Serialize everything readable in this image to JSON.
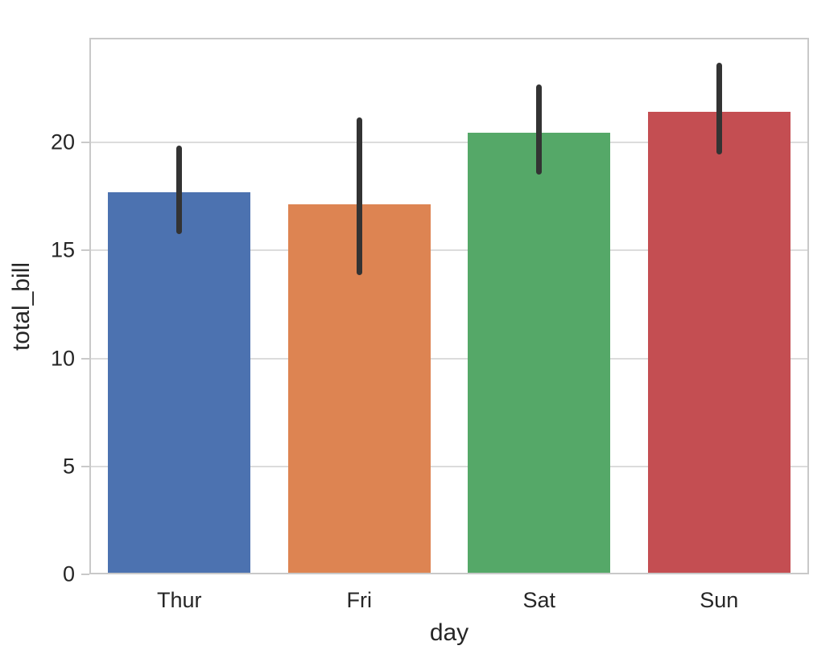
{
  "chart_data": {
    "type": "bar",
    "title": "",
    "xlabel": "day",
    "ylabel": "total_bill",
    "categories": [
      "Thur",
      "Fri",
      "Sat",
      "Sun"
    ],
    "values": [
      17.68,
      17.15,
      20.44,
      21.41
    ],
    "error_bars": {
      "low": [
        15.75,
        13.85,
        18.5,
        19.45
      ],
      "high": [
        19.85,
        21.15,
        22.7,
        23.7
      ]
    },
    "ylim": [
      0,
      24.85
    ],
    "yticks": [
      0,
      5,
      10,
      15,
      20
    ],
    "grid": "horizontal",
    "legend": "none",
    "bar_colors": [
      "#4C72B0",
      "#DD8452",
      "#55A868",
      "#C44E52"
    ],
    "error_bar_color": "#333333",
    "grid_color": "#dcdcdc",
    "spine_color": "#c9c9c9",
    "text_color": "#262626",
    "background": "#ffffff"
  }
}
